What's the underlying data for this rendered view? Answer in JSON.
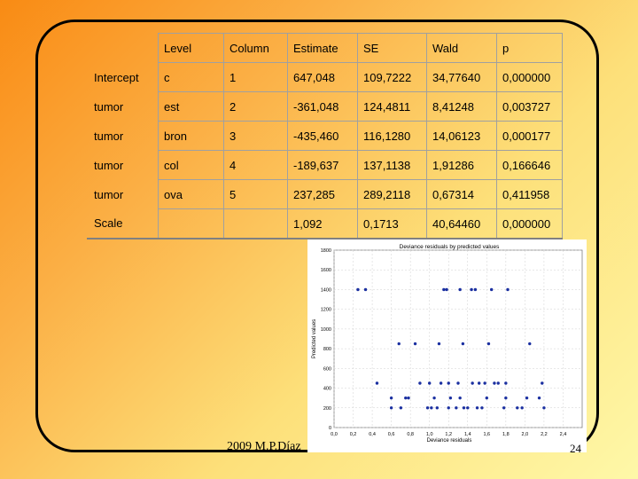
{
  "table": {
    "headers": [
      "",
      "Level",
      "Column",
      "Estimate",
      "SE",
      "Wald",
      "p"
    ],
    "rows": [
      {
        "label": "Intercept",
        "level": "c",
        "column": "1",
        "estimate": "647,048",
        "se": "109,7222",
        "wald": "34,77640",
        "p": "0,000000"
      },
      {
        "label": "tumor",
        "level": "est",
        "column": "2",
        "estimate": "-361,048",
        "se": "124,4811",
        "wald": "8,41248",
        "p": "0,003727"
      },
      {
        "label": "tumor",
        "level": "bron",
        "column": "3",
        "estimate": "-435,460",
        "se": "116,1280",
        "wald": "14,06123",
        "p": "0,000177"
      },
      {
        "label": "tumor",
        "level": "col",
        "column": "4",
        "estimate": "-189,637",
        "se": "137,1138",
        "wald": "1,91286",
        "p": "0,166646"
      },
      {
        "label": "tumor",
        "level": "ova",
        "column": "5",
        "estimate": "237,285",
        "se": "289,2118",
        "wald": "0,67314",
        "p": "0,411958"
      },
      {
        "label": "Scale",
        "level": "",
        "column": "",
        "estimate": "1,092",
        "se": "0,1713",
        "wald": "40,64460",
        "p": "0,000000"
      }
    ]
  },
  "chart_data": {
    "type": "scatter",
    "title": "Deviance residuals by predicted values",
    "xlabel": "Deviance residuals",
    "ylabel": "Predicted values",
    "xlim": [
      0.0,
      2.6
    ],
    "ylim": [
      0,
      1800
    ],
    "xticks": [
      "0,0",
      "0,2",
      "0,4",
      "0,6",
      "0,8",
      "1,0",
      "1,2",
      "1,4",
      "1,6",
      "1,8",
      "2,0",
      "2,2",
      "2,4"
    ],
    "xtick_values": [
      0.0,
      0.2,
      0.4,
      0.6,
      0.8,
      1.0,
      1.2,
      1.4,
      1.6,
      1.8,
      2.0,
      2.2,
      2.4
    ],
    "yticks": [
      "0",
      "200",
      "400",
      "600",
      "800",
      "1000",
      "1200",
      "1400",
      "1600",
      "1800"
    ],
    "ytick_values": [
      0,
      200,
      400,
      600,
      800,
      1000,
      1200,
      1400,
      1600,
      1800
    ],
    "point_color": "#1a2fa0",
    "points": [
      [
        0.25,
        1400
      ],
      [
        0.33,
        1400
      ],
      [
        1.15,
        1400
      ],
      [
        1.18,
        1400
      ],
      [
        1.32,
        1400
      ],
      [
        1.44,
        1400
      ],
      [
        1.48,
        1400
      ],
      [
        1.65,
        1400
      ],
      [
        1.82,
        1400
      ],
      [
        0.68,
        850
      ],
      [
        0.85,
        850
      ],
      [
        1.1,
        850
      ],
      [
        1.35,
        850
      ],
      [
        1.62,
        850
      ],
      [
        2.05,
        850
      ],
      [
        0.45,
        450
      ],
      [
        0.9,
        450
      ],
      [
        1.0,
        450
      ],
      [
        1.12,
        450
      ],
      [
        1.2,
        450
      ],
      [
        1.3,
        450
      ],
      [
        1.45,
        450
      ],
      [
        1.52,
        450
      ],
      [
        1.58,
        450
      ],
      [
        1.68,
        450
      ],
      [
        1.72,
        450
      ],
      [
        1.8,
        450
      ],
      [
        2.18,
        450
      ],
      [
        0.6,
        300
      ],
      [
        0.75,
        300
      ],
      [
        0.78,
        300
      ],
      [
        1.05,
        300
      ],
      [
        1.22,
        300
      ],
      [
        1.32,
        300
      ],
      [
        1.6,
        300
      ],
      [
        1.8,
        300
      ],
      [
        2.02,
        300
      ],
      [
        2.15,
        300
      ],
      [
        0.6,
        200
      ],
      [
        0.7,
        200
      ],
      [
        0.98,
        200
      ],
      [
        1.02,
        200
      ],
      [
        1.08,
        200
      ],
      [
        1.2,
        200
      ],
      [
        1.28,
        200
      ],
      [
        1.36,
        200
      ],
      [
        1.4,
        200
      ],
      [
        1.5,
        200
      ],
      [
        1.55,
        200
      ],
      [
        1.78,
        200
      ],
      [
        1.92,
        200
      ],
      [
        1.97,
        200
      ],
      [
        2.2,
        200
      ]
    ]
  },
  "footer": {
    "text": "2009   M.P.Díaz",
    "page": "24"
  }
}
